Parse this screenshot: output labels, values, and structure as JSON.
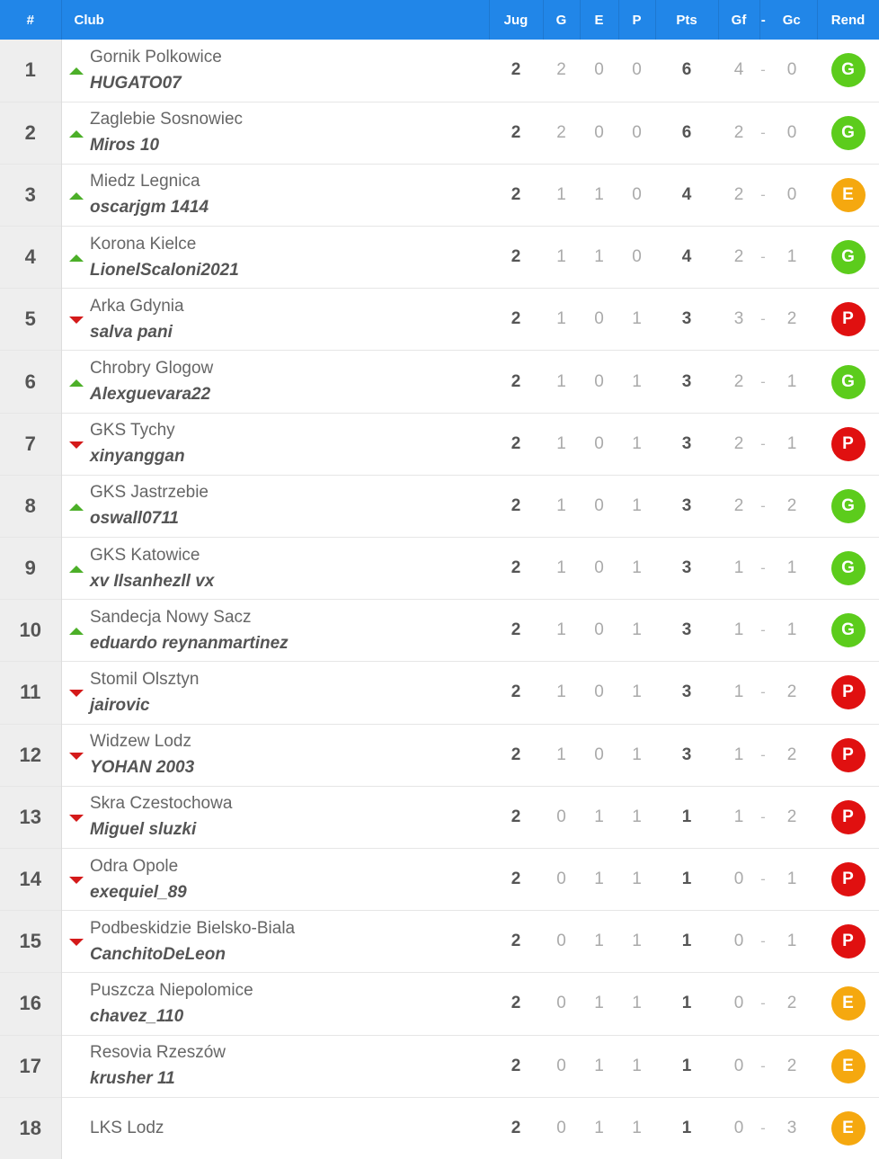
{
  "header": {
    "pos": "#",
    "club": "Club",
    "jug": "Jug",
    "g": "G",
    "e": "E",
    "p": "P",
    "pts": "Pts",
    "gf": "Gf",
    "dash": "-",
    "gc": "Gc",
    "rend": "Rend"
  },
  "colors": {
    "header_bg": "#2186e8",
    "trend_up": "#4caf28",
    "trend_down": "#d41a1a",
    "result_G": "#5ccc1c",
    "result_E": "#f5a80f",
    "result_P": "#e01010"
  },
  "rows": [
    {
      "pos": "1",
      "trend": "up",
      "club": "Gornik Polkowice",
      "user": "HUGATO07",
      "jug": "2",
      "g": "2",
      "e": "0",
      "p": "0",
      "pts": "6",
      "gf": "4",
      "gc": "0",
      "rend": "G"
    },
    {
      "pos": "2",
      "trend": "up",
      "club": "Zaglebie Sosnowiec",
      "user": "Miros 10",
      "jug": "2",
      "g": "2",
      "e": "0",
      "p": "0",
      "pts": "6",
      "gf": "2",
      "gc": "0",
      "rend": "G"
    },
    {
      "pos": "3",
      "trend": "up",
      "club": "Miedz Legnica",
      "user": "oscarjgm 1414",
      "jug": "2",
      "g": "1",
      "e": "1",
      "p": "0",
      "pts": "4",
      "gf": "2",
      "gc": "0",
      "rend": "E"
    },
    {
      "pos": "4",
      "trend": "up",
      "club": "Korona Kielce",
      "user": "LionelScaloni2021",
      "jug": "2",
      "g": "1",
      "e": "1",
      "p": "0",
      "pts": "4",
      "gf": "2",
      "gc": "1",
      "rend": "G"
    },
    {
      "pos": "5",
      "trend": "down",
      "club": "Arka Gdynia",
      "user": "salva pani",
      "jug": "2",
      "g": "1",
      "e": "0",
      "p": "1",
      "pts": "3",
      "gf": "3",
      "gc": "2",
      "rend": "P"
    },
    {
      "pos": "6",
      "trend": "up",
      "club": "Chrobry Glogow",
      "user": "Alexguevara22",
      "jug": "2",
      "g": "1",
      "e": "0",
      "p": "1",
      "pts": "3",
      "gf": "2",
      "gc": "1",
      "rend": "G"
    },
    {
      "pos": "7",
      "trend": "down",
      "club": "GKS Tychy",
      "user": "xinyanggan",
      "jug": "2",
      "g": "1",
      "e": "0",
      "p": "1",
      "pts": "3",
      "gf": "2",
      "gc": "1",
      "rend": "P"
    },
    {
      "pos": "8",
      "trend": "up",
      "club": "GKS Jastrzebie",
      "user": "oswall0711",
      "jug": "2",
      "g": "1",
      "e": "0",
      "p": "1",
      "pts": "3",
      "gf": "2",
      "gc": "2",
      "rend": "G"
    },
    {
      "pos": "9",
      "trend": "up",
      "club": "GKS Katowice",
      "user": "xv Ilsanhezll vx",
      "jug": "2",
      "g": "1",
      "e": "0",
      "p": "1",
      "pts": "3",
      "gf": "1",
      "gc": "1",
      "rend": "G"
    },
    {
      "pos": "10",
      "trend": "up",
      "club": "Sandecja Nowy Sacz",
      "user": "eduardo reynanmartinez",
      "jug": "2",
      "g": "1",
      "e": "0",
      "p": "1",
      "pts": "3",
      "gf": "1",
      "gc": "1",
      "rend": "G"
    },
    {
      "pos": "11",
      "trend": "down",
      "club": "Stomil Olsztyn",
      "user": "jairovic",
      "jug": "2",
      "g": "1",
      "e": "0",
      "p": "1",
      "pts": "3",
      "gf": "1",
      "gc": "2",
      "rend": "P"
    },
    {
      "pos": "12",
      "trend": "down",
      "club": "Widzew Lodz",
      "user": "YOHAN 2003",
      "jug": "2",
      "g": "1",
      "e": "0",
      "p": "1",
      "pts": "3",
      "gf": "1",
      "gc": "2",
      "rend": "P"
    },
    {
      "pos": "13",
      "trend": "down",
      "club": "Skra Czestochowa",
      "user": "Miguel sluzki",
      "jug": "2",
      "g": "0",
      "e": "1",
      "p": "1",
      "pts": "1",
      "gf": "1",
      "gc": "2",
      "rend": "P"
    },
    {
      "pos": "14",
      "trend": "down",
      "club": "Odra Opole",
      "user": "exequiel_89",
      "jug": "2",
      "g": "0",
      "e": "1",
      "p": "1",
      "pts": "1",
      "gf": "0",
      "gc": "1",
      "rend": "P"
    },
    {
      "pos": "15",
      "trend": "down",
      "club": "Podbeskidzie Bielsko-Biala",
      "user": "CanchitoDeLeon",
      "jug": "2",
      "g": "0",
      "e": "1",
      "p": "1",
      "pts": "1",
      "gf": "0",
      "gc": "1",
      "rend": "P"
    },
    {
      "pos": "16",
      "trend": "none",
      "club": "Puszcza Niepolomice",
      "user": "chavez_110",
      "jug": "2",
      "g": "0",
      "e": "1",
      "p": "1",
      "pts": "1",
      "gf": "0",
      "gc": "2",
      "rend": "E"
    },
    {
      "pos": "17",
      "trend": "none",
      "club": "Resovia Rzeszów",
      "user": "krusher 11",
      "jug": "2",
      "g": "0",
      "e": "1",
      "p": "1",
      "pts": "1",
      "gf": "0",
      "gc": "2",
      "rend": "E"
    },
    {
      "pos": "18",
      "trend": "none",
      "club": "LKS Lodz",
      "user": "",
      "jug": "2",
      "g": "0",
      "e": "1",
      "p": "1",
      "pts": "1",
      "gf": "0",
      "gc": "3",
      "rend": "E"
    }
  ]
}
